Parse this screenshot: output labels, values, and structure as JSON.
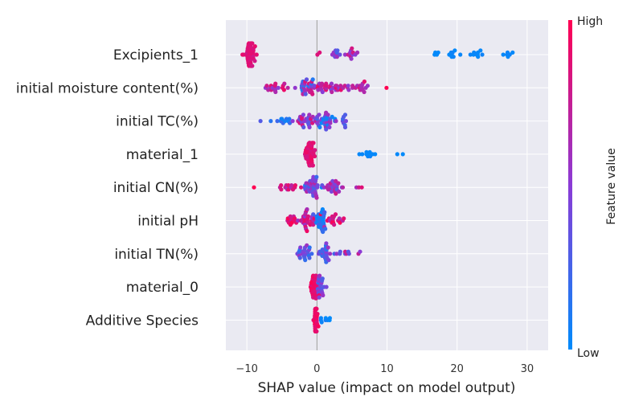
{
  "chart_data": {
    "type": "scatter",
    "subtype": "shap-beeswarm",
    "title": "",
    "xlabel": "SHAP value (impact on model output)",
    "xlim": [
      -13,
      33
    ],
    "xticks": [
      -10,
      0,
      10,
      20,
      30
    ],
    "tick_labels": [
      "−10",
      "0",
      "10",
      "20",
      "30"
    ],
    "grid": true,
    "features": [
      {
        "name": "Excipients_1",
        "clusters": [
          {
            "x": -9.5,
            "n": 45,
            "spread": 1.0,
            "h": 0.9,
            "l": 0.8
          },
          {
            "x": 0,
            "n": 2,
            "spread": 0.3,
            "h": 0.85,
            "l": 0.8
          },
          {
            "x": 2.8,
            "n": 10,
            "spread": 1.0,
            "h": 0.65,
            "l": 0.2
          },
          {
            "x": 5.0,
            "n": 12,
            "spread": 1.0,
            "h": 0.85,
            "l": 0.45
          },
          {
            "x": 17,
            "n": 4,
            "spread": 0.6,
            "h": 0.02,
            "l": 0.0
          },
          {
            "x": 19.5,
            "n": 8,
            "spread": 1.0,
            "h": 0.05,
            "l": 0.0
          },
          {
            "x": 23,
            "n": 9,
            "spread": 0.8,
            "h": 0.05,
            "l": 0.0
          },
          {
            "x": 27.5,
            "n": 6,
            "spread": 1.8,
            "h": 0.05,
            "l": 0.0
          }
        ]
      },
      {
        "name": "initial moisture content(%)",
        "clusters": [
          {
            "x": -5.5,
            "n": 20,
            "spread": 2.5,
            "h": 0.95,
            "l": 0.5
          },
          {
            "x": -1.5,
            "n": 30,
            "spread": 1.5,
            "h": 0.85,
            "l": 0.1
          },
          {
            "x": 1.5,
            "n": 30,
            "spread": 1.8,
            "h": 0.95,
            "l": 0.4
          },
          {
            "x": 6,
            "n": 20,
            "spread": 2.2,
            "h": 0.9,
            "l": 0.5
          },
          {
            "x": 10,
            "n": 1,
            "spread": 0.1,
            "h": 1.0,
            "l": 1.0
          }
        ]
      },
      {
        "name": "initial TC(%)",
        "clusters": [
          {
            "x": -8,
            "n": 1,
            "spread": 0.1,
            "h": 0.3,
            "l": 0.3
          },
          {
            "x": -5,
            "n": 12,
            "spread": 1.5,
            "h": 0.3,
            "l": 0.0
          },
          {
            "x": -1.5,
            "n": 30,
            "spread": 1.6,
            "h": 0.9,
            "l": 0.3
          },
          {
            "x": 1.5,
            "n": 30,
            "spread": 1.6,
            "h": 0.7,
            "l": 0.0
          },
          {
            "x": 4,
            "n": 8,
            "spread": 0.8,
            "h": 0.5,
            "l": 0.2
          }
        ]
      },
      {
        "name": "material_1",
        "clusters": [
          {
            "x": -1,
            "n": 45,
            "spread": 0.8,
            "h": 0.95,
            "l": 0.8
          },
          {
            "x": 7.5,
            "n": 10,
            "spread": 1.2,
            "h": 0.05,
            "l": 0.0
          },
          {
            "x": 11.5,
            "n": 2,
            "spread": 0.8,
            "h": 0.05,
            "l": 0.0
          }
        ]
      },
      {
        "name": "initial CN(%)",
        "clusters": [
          {
            "x": -9,
            "n": 1,
            "spread": 0.1,
            "h": 1.0,
            "l": 1.0
          },
          {
            "x": -4,
            "n": 15,
            "spread": 1.5,
            "h": 0.95,
            "l": 0.5
          },
          {
            "x": -0.5,
            "n": 35,
            "spread": 1.5,
            "h": 0.7,
            "l": 0.0
          },
          {
            "x": 2.5,
            "n": 25,
            "spread": 1.5,
            "h": 0.8,
            "l": 0.3
          },
          {
            "x": 5.5,
            "n": 3,
            "spread": 1.0,
            "h": 0.95,
            "l": 0.6
          }
        ]
      },
      {
        "name": "initial pH",
        "clusters": [
          {
            "x": -4,
            "n": 12,
            "spread": 1.2,
            "h": 1.0,
            "l": 0.7
          },
          {
            "x": -1.5,
            "n": 30,
            "spread": 1.2,
            "h": 0.95,
            "l": 0.5
          },
          {
            "x": 0.5,
            "n": 30,
            "spread": 0.8,
            "h": 0.3,
            "l": 0.0
          },
          {
            "x": 2.5,
            "n": 20,
            "spread": 1.2,
            "h": 1.0,
            "l": 0.6
          }
        ]
      },
      {
        "name": "initial TN(%)",
        "clusters": [
          {
            "x": -2,
            "n": 25,
            "spread": 1.2,
            "h": 0.6,
            "l": 0.1
          },
          {
            "x": 1,
            "n": 25,
            "spread": 1.4,
            "h": 0.6,
            "l": 0.1
          },
          {
            "x": 4,
            "n": 8,
            "spread": 1.2,
            "h": 0.8,
            "l": 0.3
          },
          {
            "x": 6,
            "n": 2,
            "spread": 0.2,
            "h": 0.8,
            "l": 0.5
          }
        ]
      },
      {
        "name": "material_0",
        "clusters": [
          {
            "x": -0.4,
            "n": 30,
            "spread": 0.6,
            "h": 1.0,
            "l": 0.8
          },
          {
            "x": 0.6,
            "n": 20,
            "spread": 0.5,
            "h": 0.6,
            "l": 0.2
          }
        ]
      },
      {
        "name": "Additive Species",
        "clusters": [
          {
            "x": -0.2,
            "n": 40,
            "spread": 0.3,
            "h": 1.0,
            "l": 0.85
          },
          {
            "x": 1.3,
            "n": 8,
            "spread": 0.7,
            "h": 0.1,
            "l": 0.0
          }
        ]
      }
    ],
    "colorbar": {
      "label": "Feature value",
      "high": "High",
      "low": "Low",
      "low_color": "#008bfb",
      "high_color": "#ff0052"
    },
    "colors": {
      "plot_bg": "#eaeaf2",
      "grid": "#ffffff",
      "zero_line": "#999999"
    }
  }
}
